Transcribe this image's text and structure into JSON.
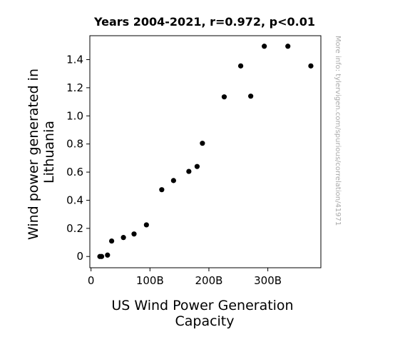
{
  "chart_data": {
    "type": "scatter",
    "title": "Years 2004-2021, r=0.972, p<0.01",
    "xlabel_lines": [
      "US Wind Power Generation",
      "Capacity"
    ],
    "ylabel_lines": [
      "Wind power generated in",
      "Lithuania"
    ],
    "watermark": "More info: tylervigen.com/spurious/correlation/41971",
    "xlim": [
      -2,
      390
    ],
    "ylim": [
      -0.08,
      1.57
    ],
    "x_ticks": [
      {
        "value": 0,
        "label": "0"
      },
      {
        "value": 100,
        "label": "100B"
      },
      {
        "value": 200,
        "label": "200B"
      },
      {
        "value": 300,
        "label": "300B"
      }
    ],
    "y_ticks": [
      {
        "value": 0,
        "label": "0"
      },
      {
        "value": 0.2,
        "label": "0.2"
      },
      {
        "value": 0.4,
        "label": "0.4"
      },
      {
        "value": 0.6,
        "label": "0.6"
      },
      {
        "value": 0.8,
        "label": "0.8"
      },
      {
        "value": 1.0,
        "label": "1.0"
      },
      {
        "value": 1.2,
        "label": "1.2"
      },
      {
        "value": 1.4,
        "label": "1.4"
      }
    ],
    "points": [
      {
        "x": 15,
        "y": 0.0
      },
      {
        "x": 18,
        "y": 0.0
      },
      {
        "x": 28,
        "y": 0.01
      },
      {
        "x": 35,
        "y": 0.11
      },
      {
        "x": 55,
        "y": 0.135
      },
      {
        "x": 73,
        "y": 0.16
      },
      {
        "x": 94,
        "y": 0.225
      },
      {
        "x": 120,
        "y": 0.475
      },
      {
        "x": 140,
        "y": 0.54
      },
      {
        "x": 166,
        "y": 0.605
      },
      {
        "x": 180,
        "y": 0.64
      },
      {
        "x": 189,
        "y": 0.805
      },
      {
        "x": 226,
        "y": 1.135
      },
      {
        "x": 254,
        "y": 1.355
      },
      {
        "x": 271,
        "y": 1.14
      },
      {
        "x": 294,
        "y": 1.495
      },
      {
        "x": 334,
        "y": 1.495
      },
      {
        "x": 373,
        "y": 1.355
      }
    ]
  }
}
